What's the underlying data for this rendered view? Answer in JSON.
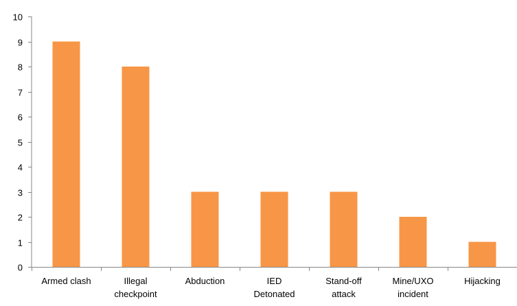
{
  "chart_data": {
    "type": "bar",
    "title": "",
    "xlabel": "",
    "ylabel": "",
    "categories": [
      [
        "Armed clash"
      ],
      [
        "Illegal",
        "checkpoint"
      ],
      [
        "Abduction"
      ],
      [
        "IED",
        "Detonated"
      ],
      [
        "Stand-off",
        "attack"
      ],
      [
        "Mine/UXO",
        "incident"
      ],
      [
        "Hijacking"
      ]
    ],
    "values": [
      9,
      8,
      3,
      3,
      3,
      2,
      1
    ],
    "ylim": [
      0,
      10
    ],
    "yticks": [
      0,
      1,
      2,
      3,
      4,
      5,
      6,
      7,
      8,
      9,
      10
    ],
    "grid": false,
    "legend": "none",
    "bar_color": "#F79646",
    "axis_color": "#868686"
  }
}
